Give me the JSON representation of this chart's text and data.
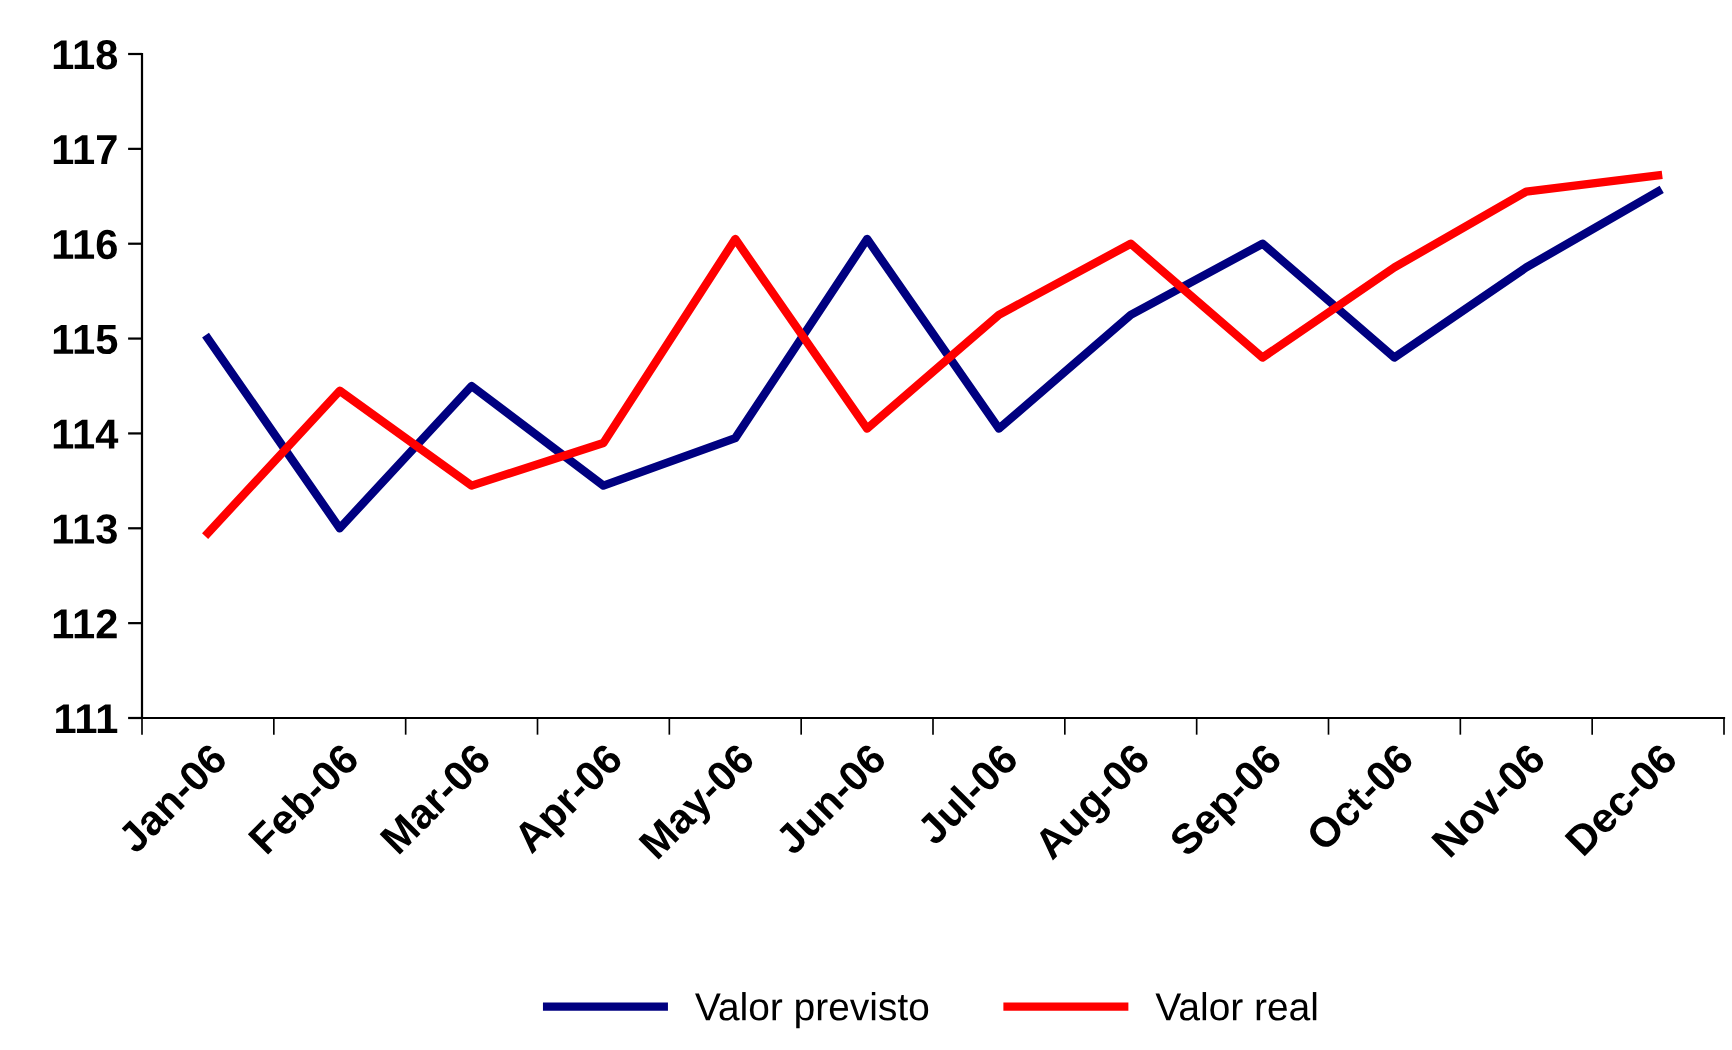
{
  "chart_data": {
    "type": "line",
    "categories": [
      "Jan-06",
      "Feb-06",
      "Mar-06",
      "Apr-06",
      "May-06",
      "Jun-06",
      "Jul-06",
      "Aug-06",
      "Sep-06",
      "Oct-06",
      "Nov-06",
      "Dec-06"
    ],
    "series": [
      {
        "name": "Valor previsto",
        "color": "#000080",
        "values": [
          115.0,
          113.0,
          114.5,
          113.45,
          113.95,
          116.05,
          114.05,
          115.25,
          116.0,
          114.8,
          115.75,
          116.55
        ]
      },
      {
        "name": "Valor real",
        "color": "#ff0000",
        "values": [
          112.95,
          114.45,
          113.45,
          113.9,
          116.05,
          114.05,
          115.25,
          116.0,
          114.8,
          115.75,
          116.55,
          116.72
        ]
      }
    ],
    "ylim": [
      111,
      118
    ],
    "yticks": [
      111,
      112,
      113,
      114,
      115,
      116,
      117,
      118
    ],
    "grid": false,
    "legend": "bottom",
    "marker": "none",
    "line_style": "solid"
  }
}
